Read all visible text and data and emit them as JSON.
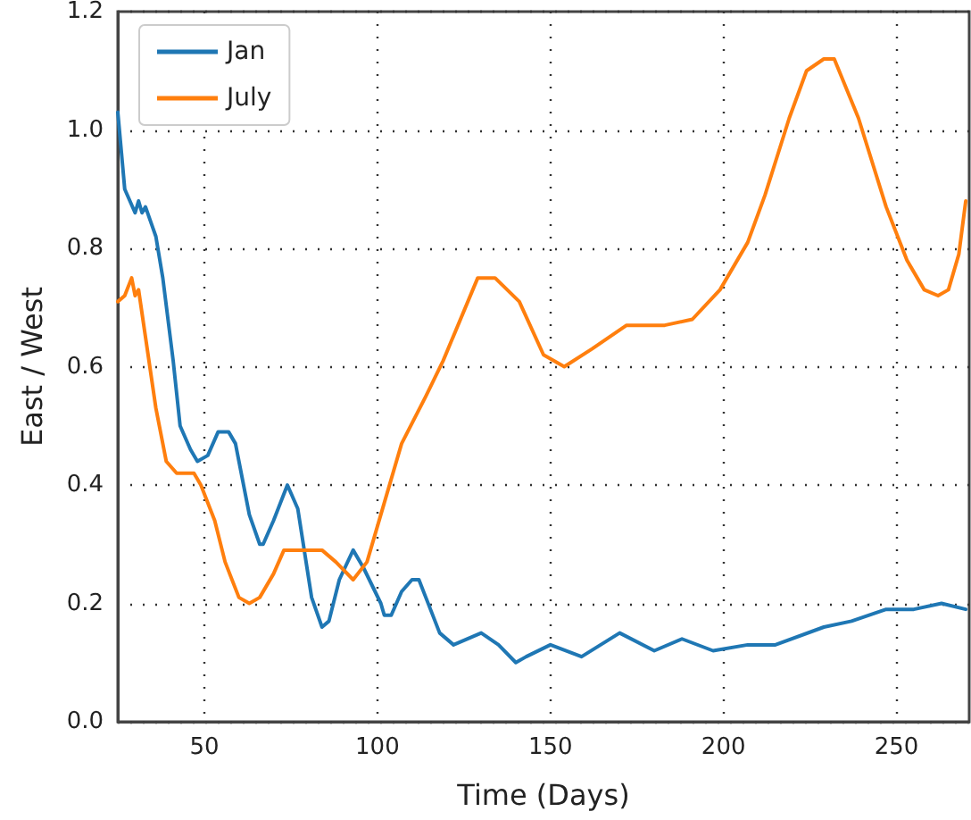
{
  "chart_data": {
    "type": "line",
    "xlabel": "Time (Days)",
    "ylabel": "East / West",
    "xlim": [
      25,
      271
    ],
    "xticks": [
      50,
      100,
      150,
      200,
      250
    ],
    "ylim": [
      0,
      1.2
    ],
    "yticks": [
      {
        "value": 0,
        "label": "0.0"
      },
      {
        "value": 0.2,
        "label": "0.2"
      },
      {
        "value": 0.4,
        "label": "0.4"
      },
      {
        "value": 0.6,
        "label": "0.6"
      },
      {
        "value": 0.8,
        "label": "0.8"
      },
      {
        "value": 1,
        "label": "1.0"
      },
      {
        "value": 1.2,
        "label": "1.2"
      }
    ],
    "grid": true,
    "legend": "top left",
    "marker": "none",
    "line_style": "solid",
    "series": [
      {
        "name": "Jan",
        "color": "#1f77b4",
        "x": [
          25,
          27,
          30,
          31,
          32,
          33,
          36,
          38,
          41,
          43,
          46,
          48,
          51,
          54,
          57,
          59,
          63,
          66,
          67,
          70,
          74,
          77,
          81,
          84,
          86,
          89,
          93,
          96,
          101,
          102,
          104,
          107,
          110,
          112,
          114,
          118,
          122,
          130,
          135,
          140,
          143,
          150,
          159,
          170,
          180,
          188,
          197,
          207,
          215,
          229,
          237,
          247,
          255,
          263,
          270
        ],
        "values": [
          1.03,
          0.9,
          0.86,
          0.88,
          0.86,
          0.87,
          0.82,
          0.75,
          0.61,
          0.5,
          0.46,
          0.44,
          0.45,
          0.49,
          0.49,
          0.47,
          0.35,
          0.3,
          0.3,
          0.34,
          0.4,
          0.36,
          0.21,
          0.16,
          0.17,
          0.24,
          0.29,
          0.26,
          0.2,
          0.18,
          0.18,
          0.22,
          0.24,
          0.24,
          0.21,
          0.15,
          0.13,
          0.15,
          0.13,
          0.1,
          0.11,
          0.13,
          0.11,
          0.15,
          0.12,
          0.14,
          0.12,
          0.13,
          0.13,
          0.16,
          0.17,
          0.19,
          0.19,
          0.2,
          0.19
        ]
      },
      {
        "name": "July",
        "color": "#ff7f0e",
        "x": [
          25,
          27,
          29,
          30,
          31,
          33,
          36,
          39,
          42,
          44,
          47,
          49,
          53,
          56,
          60,
          63,
          66,
          70,
          73,
          78,
          84,
          88,
          93,
          97,
          102,
          107,
          114,
          119,
          129,
          134,
          141,
          148,
          154,
          162,
          172,
          183,
          191,
          199,
          207,
          212,
          219,
          224,
          229,
          232,
          239,
          247,
          253,
          258,
          262,
          265,
          268,
          270
        ],
        "values": [
          0.71,
          0.72,
          0.75,
          0.72,
          0.73,
          0.65,
          0.53,
          0.44,
          0.42,
          0.42,
          0.42,
          0.4,
          0.34,
          0.27,
          0.21,
          0.2,
          0.21,
          0.25,
          0.29,
          0.29,
          0.29,
          0.27,
          0.24,
          0.27,
          0.37,
          0.47,
          0.55,
          0.61,
          0.75,
          0.75,
          0.71,
          0.62,
          0.6,
          0.63,
          0.67,
          0.67,
          0.68,
          0.73,
          0.81,
          0.89,
          1.02,
          1.1,
          1.12,
          1.12,
          1.02,
          0.87,
          0.78,
          0.73,
          0.72,
          0.73,
          0.79,
          0.88
        ]
      }
    ]
  }
}
